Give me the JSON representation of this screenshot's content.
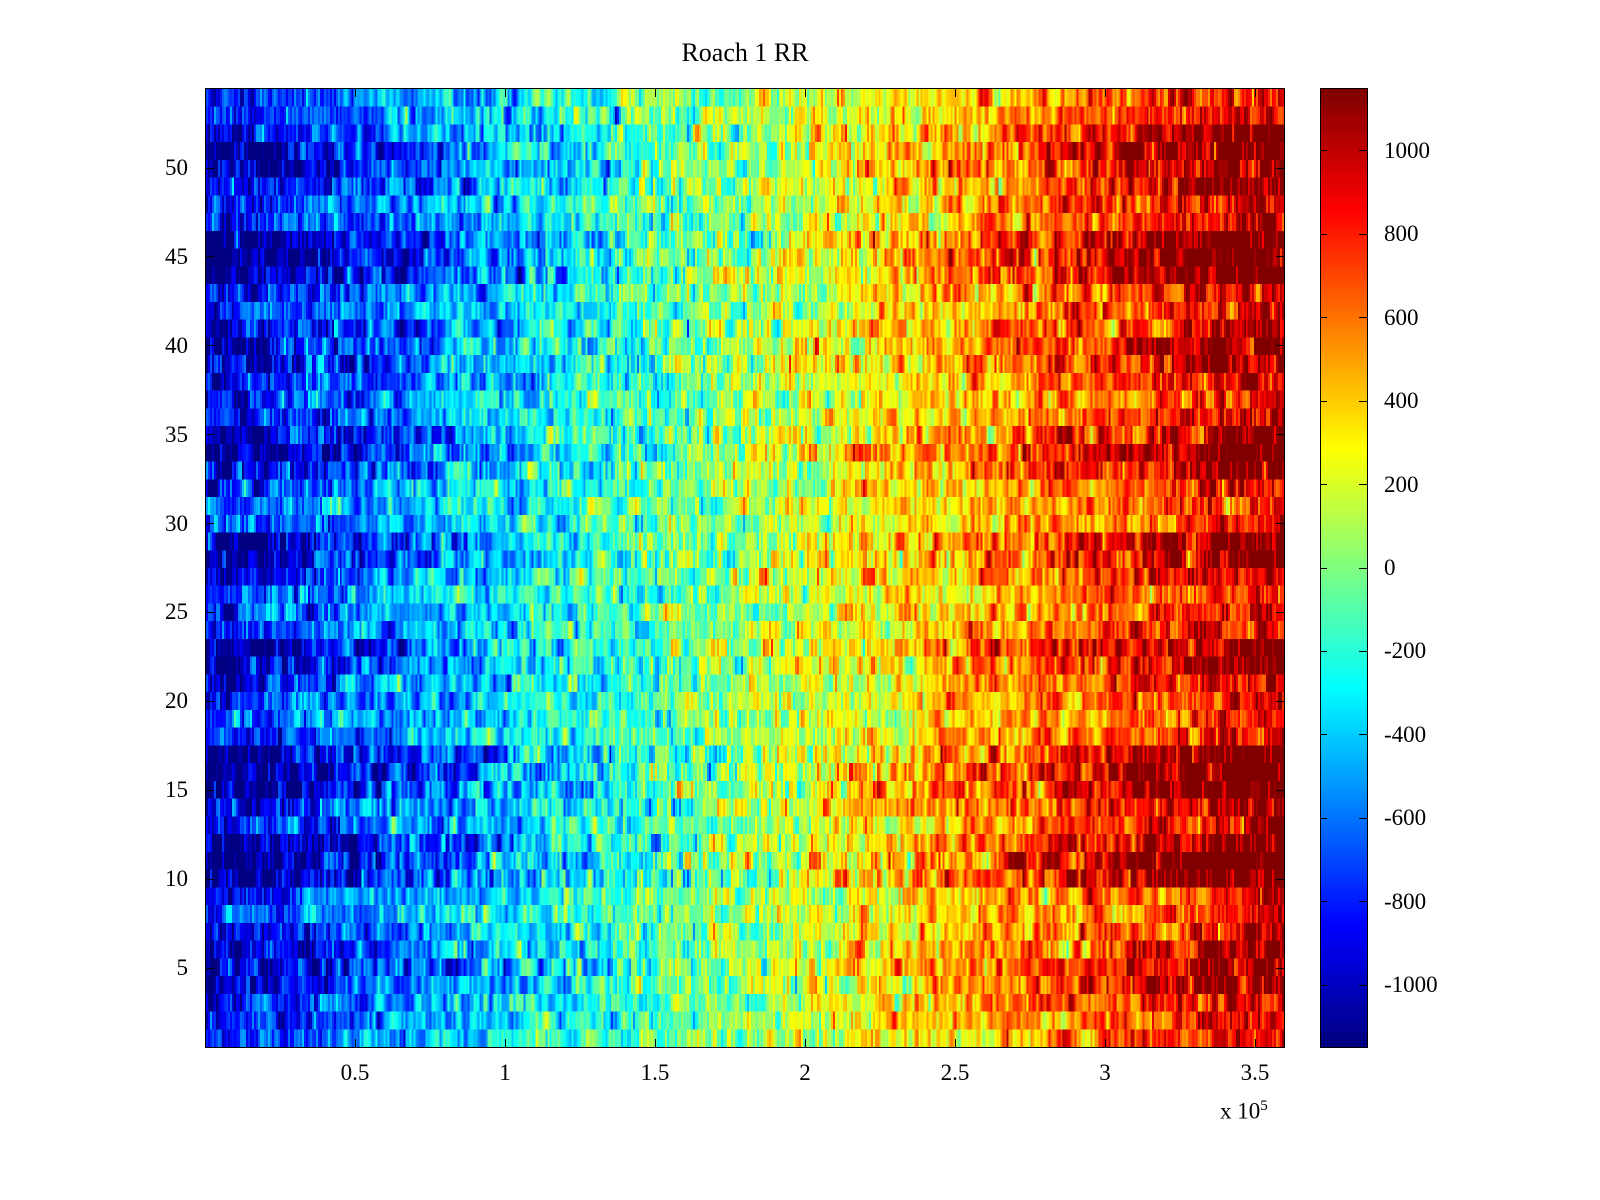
{
  "chart_data": {
    "type": "heatmap",
    "title": "Roach 1 RR",
    "colormap": "jet",
    "background_color": "#ffffff",
    "axis_color": "#000000",
    "x_range": [
      0,
      360000
    ],
    "x_scale_base": "x 10",
    "x_scale_exp": "5",
    "x_tick_values": [
      50000,
      100000,
      150000,
      200000,
      250000,
      300000,
      350000
    ],
    "x_tick_labels": [
      "0.5",
      "1",
      "1.5",
      "2",
      "2.5",
      "3",
      "3.5"
    ],
    "rows": 54,
    "cols": 540,
    "y_tick_values": [
      5,
      10,
      15,
      20,
      25,
      30,
      35,
      40,
      45,
      50
    ],
    "y_tick_labels": [
      "5",
      "10",
      "15",
      "20",
      "25",
      "30",
      "35",
      "40",
      "45",
      "50"
    ],
    "value_range": [
      -1150,
      1150
    ],
    "colorbar_tick_values": [
      1000,
      800,
      600,
      400,
      200,
      0,
      -200,
      -400,
      -600,
      -800,
      -1000
    ],
    "colorbar_tick_labels": [
      "1000",
      "800",
      "600",
      "400",
      "200",
      "0",
      "-200",
      "-400",
      "-600",
      "-800",
      "-1000"
    ],
    "gradient_zero_frac": 0.47,
    "noise_std": 140,
    "seed": 1337,
    "row_amplitudes": [
      0.85,
      0.9,
      0.95,
      1.05,
      1.15,
      1.1,
      0.95,
      0.8,
      0.85,
      1.3,
      1.35,
      1.25,
      0.95,
      1.1,
      1.3,
      1.35,
      1.25,
      0.85,
      0.8,
      0.9,
      0.95,
      1.15,
      1.2,
      0.9,
      0.85,
      0.8,
      1.0,
      1.2,
      1.15,
      0.85,
      0.8,
      0.9,
      1.1,
      1.25,
      1.15,
      0.9,
      0.85,
      0.95,
      1.1,
      1.15,
      1.05,
      0.9,
      0.95,
      1.25,
      1.3,
      1.25,
      1.0,
      0.95,
      1.1,
      1.15,
      1.2,
      1.1,
      0.9,
      0.85
    ]
  }
}
